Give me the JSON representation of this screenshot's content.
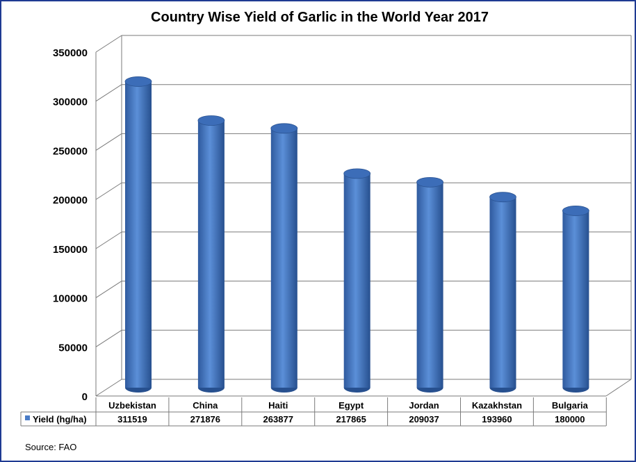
{
  "chart_data": {
    "type": "bar",
    "title": "Country Wise Yield of Garlic in the World Year 2017",
    "categories": [
      "Uzbekistan",
      "China",
      "Haiti",
      "Egypt",
      "Jordan",
      "Kazakhstan",
      "Bulgaria"
    ],
    "series": [
      {
        "name": "Yield (hg/ha)",
        "values": [
          311519,
          271876,
          263877,
          217865,
          209037,
          193960,
          180000
        ],
        "color": "#4a7cc7"
      }
    ],
    "data_table_values": [
      "311519",
      "271876",
      "263877",
      "217865",
      "209037",
      "193960",
      "180000"
    ],
    "yticks": [
      "0",
      "50000",
      "100000",
      "150000",
      "200000",
      "250000",
      "300000",
      "350000"
    ],
    "ylim": [
      0,
      350000
    ],
    "grid": true,
    "legend": "data-table-left",
    "source": "Source: FAO"
  }
}
